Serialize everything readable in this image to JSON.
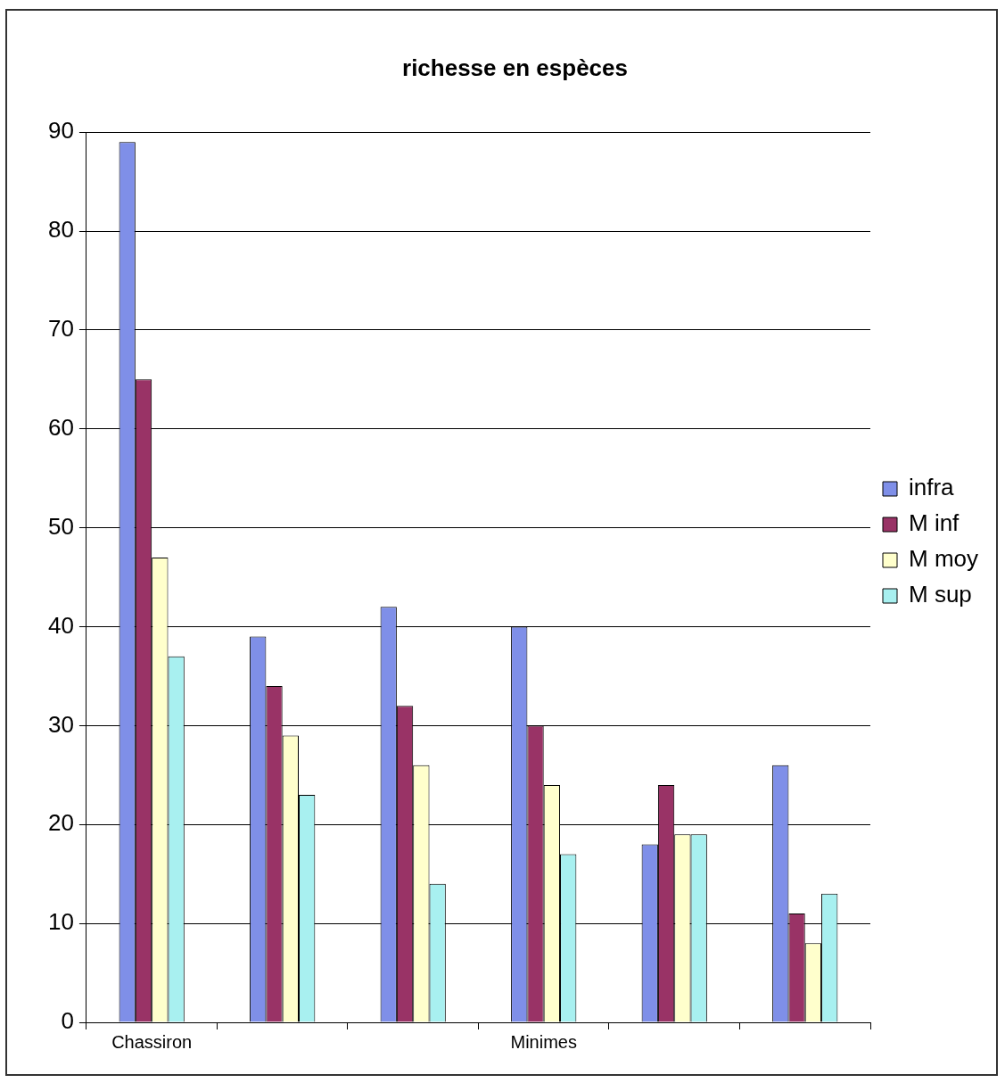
{
  "chart_data": {
    "type": "bar",
    "title": "richesse en espèces",
    "categories": [
      "Chassiron",
      null,
      null,
      "Minimes",
      null,
      null
    ],
    "series": [
      {
        "name": "infra",
        "color": "#7f8fe8",
        "values": [
          89,
          39,
          42,
          40,
          18,
          26
        ]
      },
      {
        "name": "M inf",
        "color": "#993366",
        "values": [
          65,
          34,
          32,
          30,
          24,
          11
        ]
      },
      {
        "name": "M moy",
        "color": "#ffffcc",
        "values": [
          47,
          29,
          26,
          24,
          19,
          8
        ]
      },
      {
        "name": "M sup",
        "color": "#a8f0f0",
        "values": [
          37,
          23,
          14,
          17,
          19,
          13
        ]
      }
    ],
    "ylim": [
      0,
      90
    ],
    "yticks": [
      0,
      10,
      20,
      30,
      40,
      50,
      60,
      70,
      80,
      90
    ],
    "grid": "y",
    "legend": "right"
  }
}
